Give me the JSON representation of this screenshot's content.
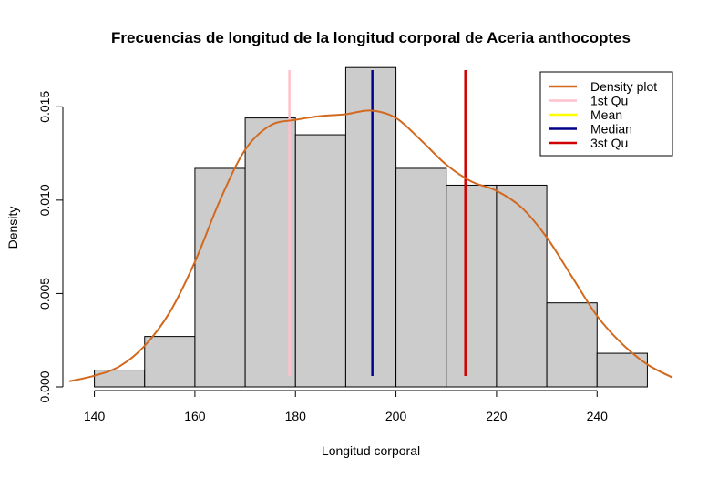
{
  "chart_data": {
    "type": "histogram",
    "title": "Frecuencias de longitud de la longitud corporal de Aceria anthocoptes",
    "xlabel": "Longitud  corporal",
    "ylabel": "Density",
    "xlim": [
      135,
      255
    ],
    "ylim": [
      0,
      0.0175
    ],
    "x_ticks": [
      140,
      160,
      180,
      200,
      220,
      240
    ],
    "y_ticks": [
      0.0,
      0.005,
      0.01,
      0.015
    ],
    "x_tick_labels": [
      "140",
      "160",
      "180",
      "200",
      "220",
      "240"
    ],
    "y_tick_labels": [
      "0.000",
      "0.005",
      "0.010",
      "0.015"
    ],
    "bins": [
      {
        "start": 140,
        "end": 150,
        "density": 0.0009
      },
      {
        "start": 150,
        "end": 160,
        "density": 0.0027
      },
      {
        "start": 160,
        "end": 170,
        "density": 0.0117
      },
      {
        "start": 170,
        "end": 180,
        "density": 0.0144
      },
      {
        "start": 180,
        "end": 190,
        "density": 0.0135
      },
      {
        "start": 190,
        "end": 200,
        "density": 0.0171
      },
      {
        "start": 200,
        "end": 210,
        "density": 0.0117
      },
      {
        "start": 210,
        "end": 220,
        "density": 0.0108
      },
      {
        "start": 220,
        "end": 230,
        "density": 0.0108
      },
      {
        "start": 230,
        "end": 240,
        "density": 0.0045
      },
      {
        "start": 240,
        "end": 250,
        "density": 0.0018
      }
    ],
    "density_curve": {
      "x": [
        135,
        140,
        145,
        150,
        155,
        160,
        165,
        170,
        175,
        180,
        185,
        190,
        195,
        200,
        205,
        210,
        215,
        220,
        225,
        230,
        235,
        240,
        245,
        250,
        255
      ],
      "y": [
        0.0003,
        0.0006,
        0.0011,
        0.0022,
        0.004,
        0.0067,
        0.01,
        0.0127,
        0.014,
        0.0143,
        0.0145,
        0.0146,
        0.0148,
        0.0144,
        0.0132,
        0.0119,
        0.011,
        0.0105,
        0.0096,
        0.008,
        0.0059,
        0.0038,
        0.0023,
        0.0012,
        0.0005
      ],
      "color": "#d2691e"
    },
    "reference_lines": [
      {
        "name": "1st Qu",
        "x": 178.8,
        "color": "#ffc0cb"
      },
      {
        "name": "Mean",
        "x": 195.3,
        "color": "#ffff00"
      },
      {
        "name": "Median",
        "x": 195.3,
        "color": "#00008b"
      },
      {
        "name": "3st Qu",
        "x": 213.8,
        "color": "#d00000"
      }
    ],
    "legend": {
      "position": "top-right",
      "entries": [
        {
          "label": "Density plot",
          "color": "#d2691e"
        },
        {
          "label": "1st Qu",
          "color": "#ffc0cb"
        },
        {
          "label": "Mean",
          "color": "#ffff00"
        },
        {
          "label": "Median",
          "color": "#00008b"
        },
        {
          "label": "3st Qu",
          "color": "#d00000"
        }
      ]
    },
    "bar_fill": "#cccccc",
    "bar_stroke": "#000000"
  }
}
